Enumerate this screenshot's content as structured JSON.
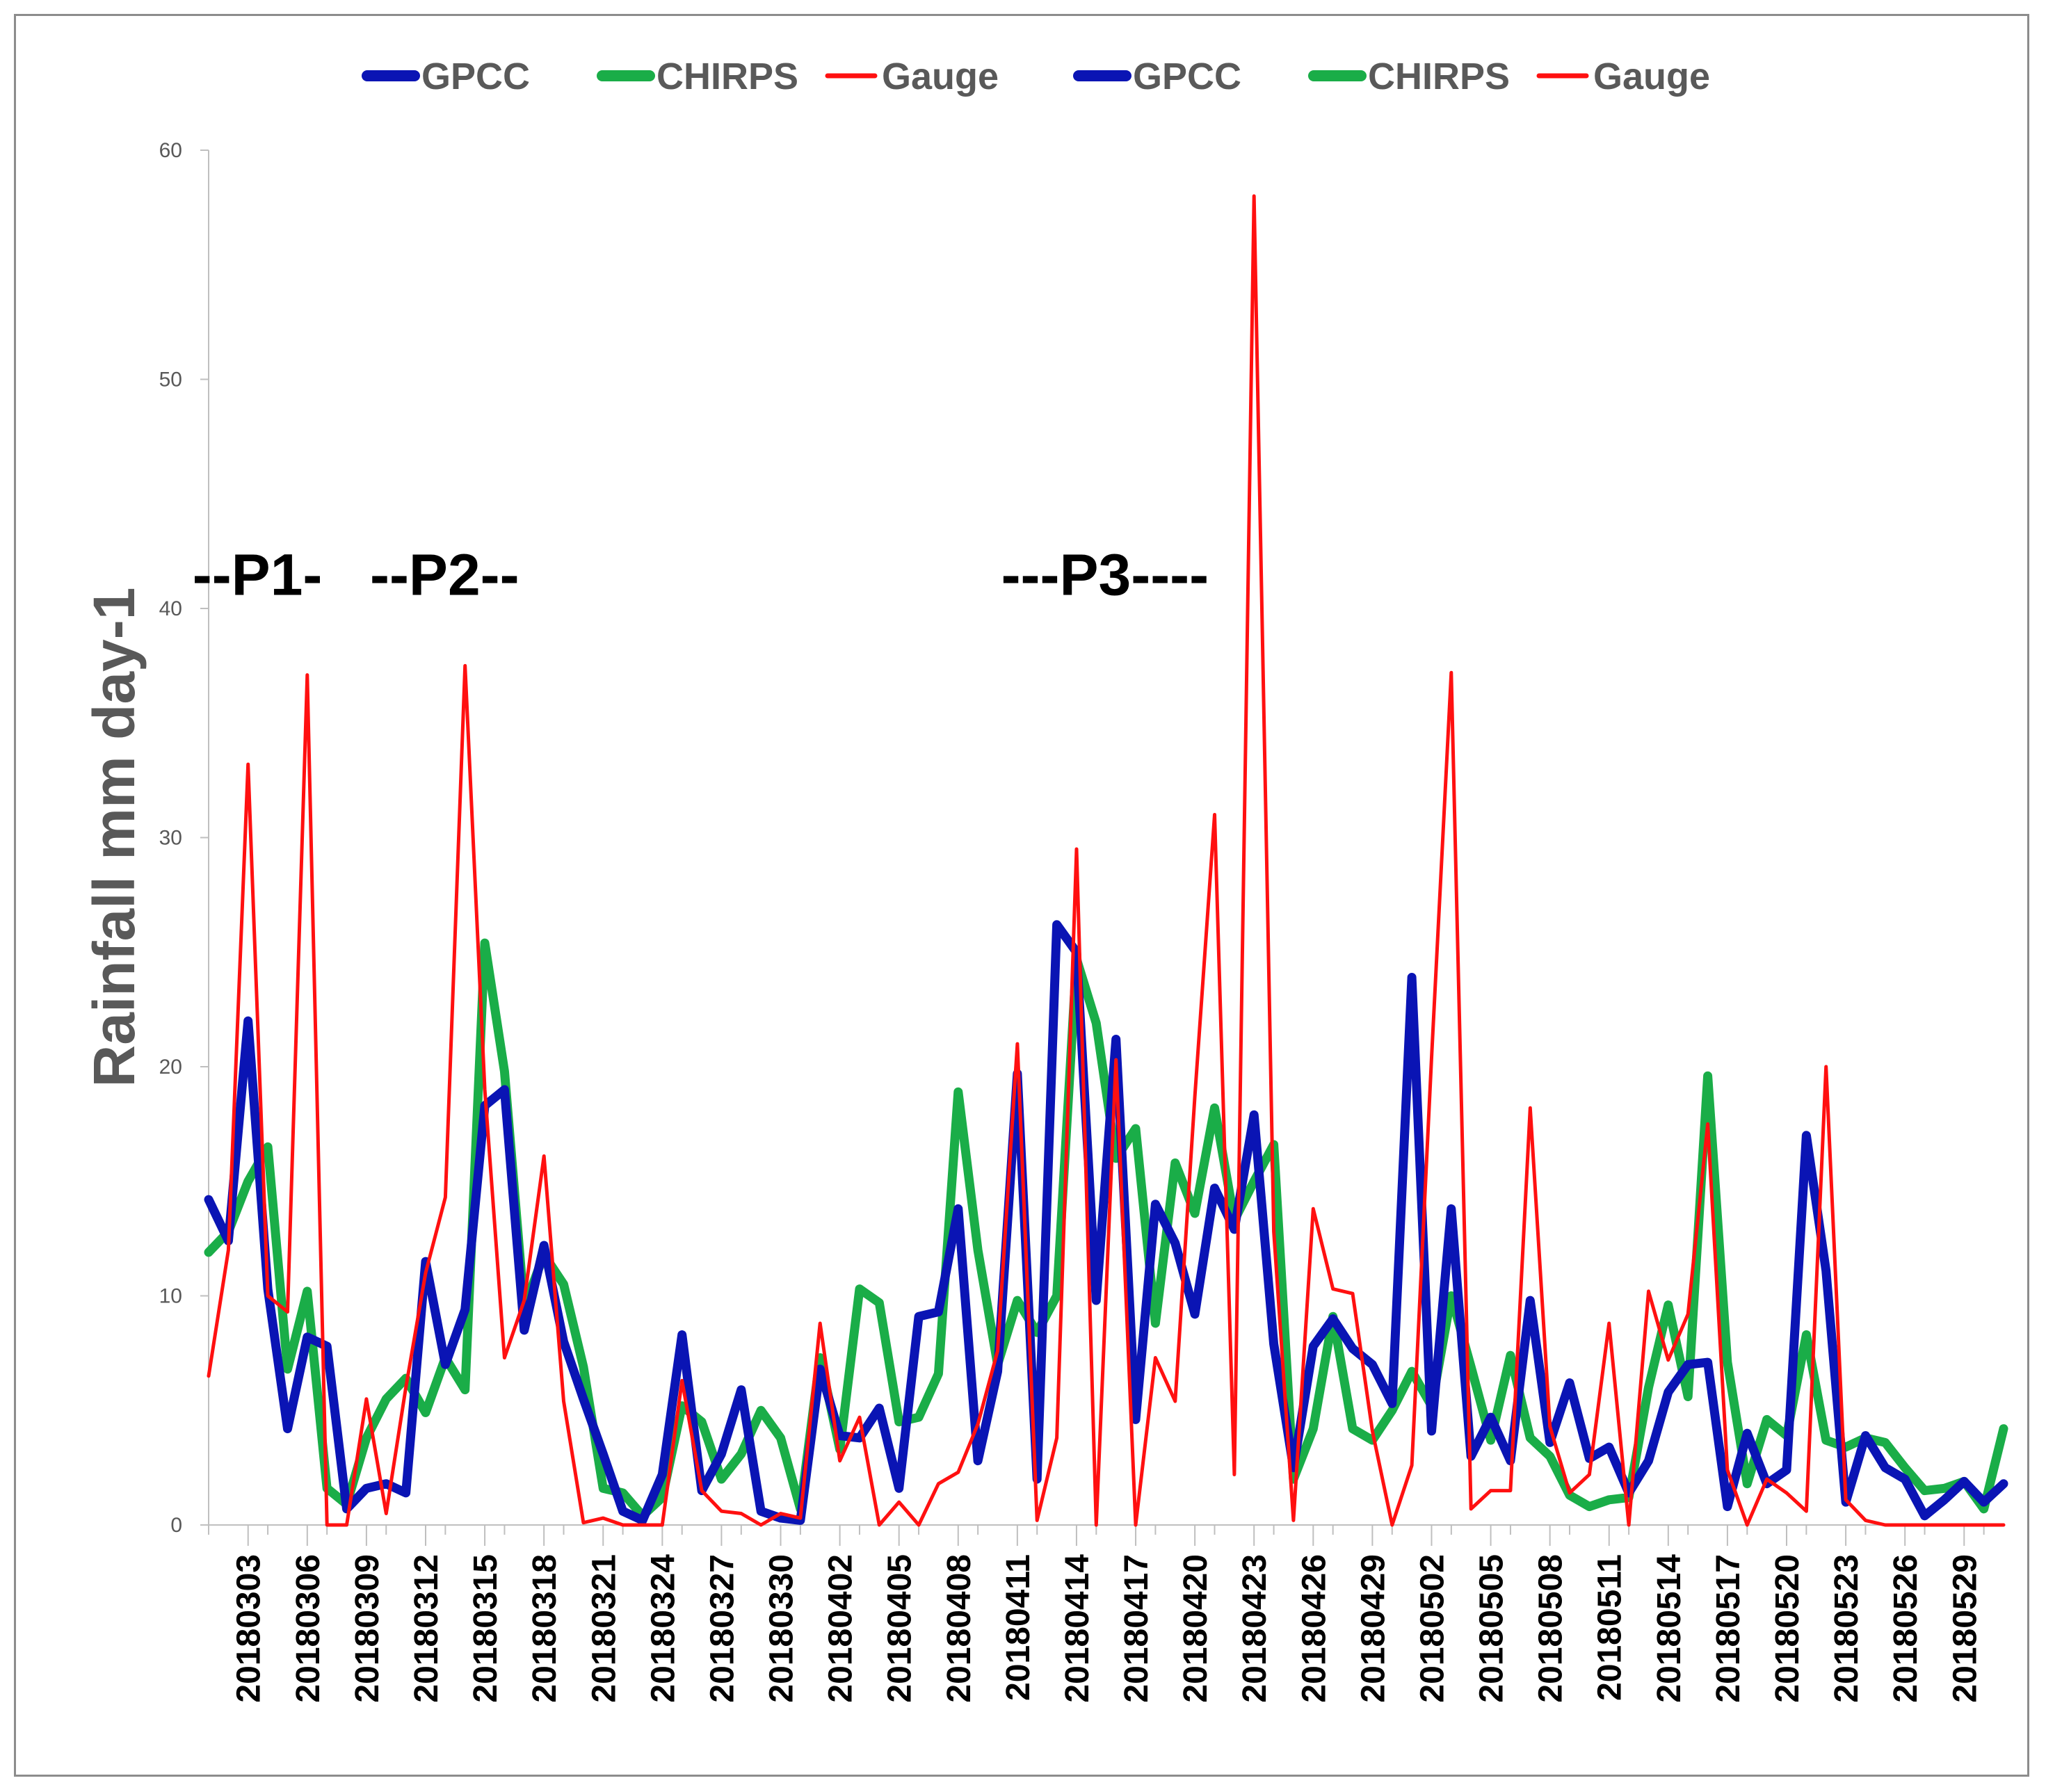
{
  "chart_data": {
    "type": "line",
    "title": "",
    "xlabel": "",
    "ylabel": "Rainfall mm day-1",
    "ylim": [
      0,
      60
    ],
    "yticks": [
      0,
      10,
      20,
      30,
      40,
      50,
      60
    ],
    "grid": false,
    "legend_position": "top",
    "x_start": "20180301",
    "x_end": "20180531",
    "xtick_labels": [
      "20180303",
      "20180306",
      "20180309",
      "20180312",
      "20180315",
      "20180318",
      "20180321",
      "20180324",
      "20180327",
      "20180330",
      "20180402",
      "20180405",
      "20180408",
      "20180411",
      "20180414",
      "20180417",
      "20180420",
      "20180423",
      "20180426",
      "20180429",
      "20180502",
      "20180505",
      "20180508",
      "20180511",
      "20180514",
      "20180517",
      "20180520",
      "20180523",
      "20180526",
      "20180529"
    ],
    "annotations": [
      {
        "text": "--P1-",
        "x": "20180303",
        "y": 41.5
      },
      {
        "text": "--P2--",
        "x": "20180312",
        "y": 41.5
      },
      {
        "text": "---P3----",
        "x": "20180413",
        "y": 41.5
      }
    ],
    "legend": [
      {
        "label": "GPCC",
        "color": "#0a14b4"
      },
      {
        "label": "CHIRPS",
        "color": "#1aad48"
      },
      {
        "label": "Gauge",
        "color": "#ff1010"
      },
      {
        "label": "GPCC",
        "color": "#0a14b4"
      },
      {
        "label": "CHIRPS",
        "color": "#1aad48"
      },
      {
        "label": "Gauge",
        "color": "#ff1010"
      }
    ],
    "series": [
      {
        "name": "GPCC",
        "color": "#0a14b4",
        "line_style": "thick",
        "values": [
          14.2,
          12.4,
          22.0,
          10.3,
          4.2,
          8.2,
          7.8,
          0.7,
          1.6,
          1.8,
          1.4,
          11.5,
          7.0,
          9.4,
          18.3,
          19.0,
          8.5,
          12.2,
          8.0,
          5.5,
          3.1,
          0.6,
          0.2,
          2.2,
          8.3,
          1.5,
          3.1,
          5.9,
          0.6,
          0.3,
          0.2,
          6.8,
          3.9,
          3.8,
          5.1,
          1.6,
          9.1,
          9.3,
          13.8,
          2.8,
          6.7,
          19.7,
          2.0,
          26.2,
          25.0,
          9.8,
          21.2,
          4.6,
          14.0,
          12.3,
          9.2,
          14.7,
          12.9,
          17.9,
          7.9,
          2.5,
          7.8,
          9.0,
          7.7,
          7.0,
          5.3,
          23.9,
          4.1,
          13.8,
          3.0,
          4.7,
          2.8,
          9.8,
          3.6,
          6.2,
          2.9,
          3.4,
          1.4,
          2.8,
          5.8,
          7.0,
          7.1,
          0.8,
          4.0,
          1.8,
          2.4,
          17.0,
          11.1,
          1.0,
          3.9,
          2.5,
          2.0,
          0.4,
          1.1,
          1.9,
          1.0,
          1.8
        ]
      },
      {
        "name": "CHIRPS",
        "color": "#1aad48",
        "line_style": "thick",
        "values": [
          11.9,
          12.8,
          15.0,
          16.5,
          6.8,
          10.2,
          1.6,
          0.9,
          3.8,
          5.5,
          6.4,
          4.9,
          7.3,
          5.9,
          25.4,
          19.8,
          9.5,
          11.8,
          10.5,
          6.9,
          1.6,
          1.4,
          0.4,
          1.2,
          5.2,
          4.5,
          2.0,
          3.1,
          5.0,
          3.8,
          0.7,
          7.3,
          3.3,
          10.3,
          9.7,
          4.5,
          4.7,
          6.6,
          18.9,
          12.0,
          7.0,
          9.8,
          8.4,
          10.0,
          24.7,
          21.9,
          16.0,
          17.3,
          8.8,
          15.8,
          13.6,
          18.2,
          13.3,
          15.0,
          16.6,
          2.0,
          4.2,
          9.1,
          4.2,
          3.7,
          5.0,
          6.7,
          5.2,
          10.0,
          6.9,
          3.7,
          7.4,
          3.8,
          3.0,
          1.3,
          0.8,
          1.1,
          1.2,
          6.0,
          9.6,
          5.6,
          19.6,
          7.1,
          1.8,
          4.6,
          3.9,
          8.3,
          3.7,
          3.4,
          3.8,
          3.6,
          2.5,
          1.5,
          1.6,
          1.9,
          0.7,
          4.2
        ]
      },
      {
        "name": "Gauge",
        "color": "#ff1010",
        "line_style": "thin",
        "values": [
          6.5,
          12.0,
          33.2,
          10.0,
          9.3,
          37.1,
          0.0,
          0.0,
          5.5,
          0.5,
          6.0,
          11.0,
          14.3,
          37.5,
          19.0,
          7.3,
          9.8,
          16.1,
          5.4,
          0.1,
          0.3,
          0.0,
          0.0,
          0.0,
          6.3,
          1.5,
          0.6,
          0.5,
          0.0,
          0.5,
          0.3,
          8.8,
          2.8,
          4.7,
          0.0,
          1.0,
          0.0,
          1.8,
          2.3,
          4.4,
          7.6,
          21.0,
          0.2,
          3.8,
          29.5,
          0.0,
          20.3,
          0.0,
          7.3,
          5.4,
          18.7,
          31.0,
          2.2,
          58.0,
          12.8,
          0.2,
          13.8,
          10.3,
          10.1,
          4.1,
          0.0,
          2.6,
          20.4,
          37.2,
          0.7,
          1.5,
          1.5,
          18.2,
          4.3,
          1.4,
          2.2,
          8.8,
          0.0,
          10.2,
          7.2,
          9.2,
          17.5,
          2.4,
          0.0,
          2.0,
          1.4,
          0.6,
          20.0,
          1.1,
          0.2,
          0.0,
          0.0,
          0.0,
          0.0,
          0.0,
          0.0,
          0.0
        ]
      }
    ]
  }
}
